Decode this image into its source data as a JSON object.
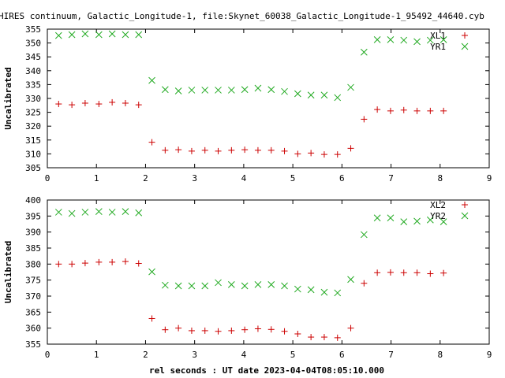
{
  "title": "HIRES continuum, Galactic_Longitude-1, file:Skynet_60038_Galactic_Longitude-1_95492_44640.cyb",
  "xlabel": "rel seconds : UT date 2023-04-04T08:05:10.000",
  "colors": {
    "red": "#cc0000",
    "green": "#22aa22"
  },
  "chart_data": [
    {
      "type": "scatter",
      "ylabel": "Uncalibrated",
      "xlim": [
        0,
        9
      ],
      "ylim": [
        305,
        355
      ],
      "xticks": [
        0,
        1,
        2,
        3,
        4,
        5,
        6,
        7,
        8,
        9
      ],
      "yticks": [
        305,
        310,
        315,
        320,
        325,
        330,
        335,
        340,
        345,
        350,
        355
      ],
      "legend_position": "top-right",
      "series": [
        {
          "name": "XL1",
          "marker": "+",
          "color": "#cc0000",
          "x": [
            0.23,
            0.5,
            0.77,
            1.05,
            1.32,
            1.59,
            1.86,
            2.13,
            2.4,
            2.67,
            2.94,
            3.21,
            3.48,
            3.75,
            4.02,
            4.29,
            4.56,
            4.83,
            5.1,
            5.37,
            5.64,
            5.91,
            6.18,
            6.45,
            6.72,
            6.99,
            7.26,
            7.53,
            7.8,
            8.07
          ],
          "y": [
            328,
            327.7,
            328.3,
            328,
            328.6,
            328.3,
            327.7,
            314.2,
            311.3,
            311.5,
            311,
            311.3,
            311,
            311.3,
            311.5,
            311.3,
            311.3,
            311,
            310,
            310.3,
            309.8,
            309.8,
            312,
            322.5,
            326,
            325.5,
            325.8,
            325.5,
            325.5,
            325.5
          ]
        },
        {
          "name": "YR1",
          "marker": "x",
          "color": "#22aa22",
          "x": [
            0.23,
            0.5,
            0.77,
            1.05,
            1.32,
            1.59,
            1.86,
            2.13,
            2.4,
            2.67,
            2.94,
            3.21,
            3.48,
            3.75,
            4.02,
            4.29,
            4.56,
            4.83,
            5.1,
            5.37,
            5.64,
            5.91,
            6.18,
            6.45,
            6.72,
            6.99,
            7.26,
            7.53,
            7.8,
            8.07
          ],
          "y": [
            352.7,
            353,
            353.3,
            353,
            353.3,
            353,
            353,
            336.5,
            333.2,
            332.7,
            333,
            333,
            333,
            333,
            333.2,
            333.7,
            333.2,
            332.5,
            331.7,
            331.2,
            331.2,
            330.3,
            334,
            346.7,
            351.2,
            351.2,
            351,
            350.5,
            351,
            351.2
          ]
        }
      ]
    },
    {
      "type": "scatter",
      "ylabel": "Uncalibrated",
      "xlim": [
        0,
        9
      ],
      "ylim": [
        355,
        400
      ],
      "xticks": [
        0,
        1,
        2,
        3,
        4,
        5,
        6,
        7,
        8,
        9
      ],
      "yticks": [
        355,
        360,
        365,
        370,
        375,
        380,
        385,
        390,
        395,
        400
      ],
      "legend_position": "top-right",
      "series": [
        {
          "name": "XL2",
          "marker": "+",
          "color": "#cc0000",
          "x": [
            0.23,
            0.5,
            0.77,
            1.05,
            1.32,
            1.59,
            1.86,
            2.13,
            2.4,
            2.67,
            2.94,
            3.21,
            3.48,
            3.75,
            4.02,
            4.29,
            4.56,
            4.83,
            5.1,
            5.37,
            5.64,
            5.91,
            6.18,
            6.45,
            6.72,
            6.99,
            7.26,
            7.53,
            7.8,
            8.07
          ],
          "y": [
            380,
            380,
            380.3,
            380.6,
            380.6,
            380.8,
            380.2,
            363,
            359.5,
            360,
            359.2,
            359.2,
            359,
            359.2,
            359.5,
            359.8,
            359.6,
            359,
            358.2,
            357.2,
            357.2,
            357,
            360,
            374,
            377.3,
            377.4,
            377.3,
            377.3,
            377,
            377.2
          ]
        },
        {
          "name": "YR2",
          "marker": "x",
          "color": "#22aa22",
          "x": [
            0.23,
            0.5,
            0.77,
            1.05,
            1.32,
            1.59,
            1.86,
            2.13,
            2.4,
            2.67,
            2.94,
            3.21,
            3.48,
            3.75,
            4.02,
            4.29,
            4.56,
            4.83,
            5.1,
            5.37,
            5.64,
            5.91,
            6.18,
            6.45,
            6.72,
            6.99,
            7.26,
            7.53,
            7.8,
            8.07
          ],
          "y": [
            396.2,
            395.8,
            396.2,
            396.4,
            396.2,
            396.4,
            396,
            377.6,
            373.4,
            373.2,
            373.2,
            373.2,
            374.2,
            373.6,
            373.2,
            373.6,
            373.6,
            373.2,
            372.2,
            372,
            371.2,
            371,
            375.2,
            389.2,
            394.4,
            394.4,
            393.2,
            393.4,
            393.8,
            393.2
          ]
        }
      ]
    }
  ]
}
